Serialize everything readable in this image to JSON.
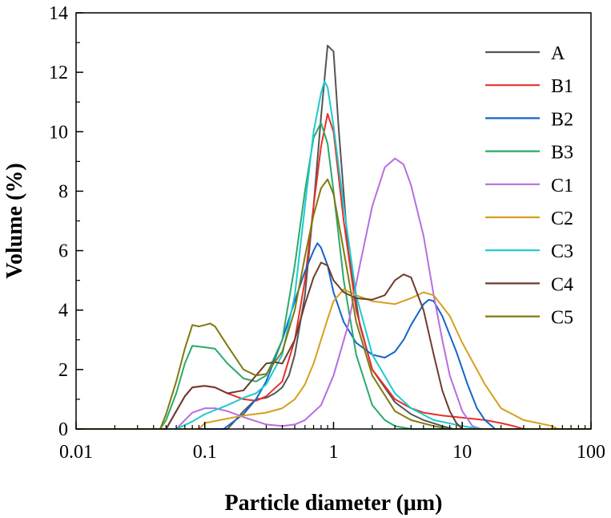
{
  "chart_data": {
    "type": "line",
    "xlabel": "Particle diameter (μm)",
    "ylabel": "Volume (%)",
    "xscale": "log",
    "xlim": [
      0.01,
      100
    ],
    "ylim": [
      0,
      14
    ],
    "x_ticks": [
      "0.01",
      "0.1",
      "1",
      "10",
      "100"
    ],
    "y_ticks": [
      "0",
      "2",
      "4",
      "6",
      "8",
      "10",
      "12",
      "14"
    ],
    "grid": false,
    "legend_position": "top-right",
    "series": [
      {
        "name": "A",
        "color": "#555555",
        "points": [
          [
            0.01,
            0
          ],
          [
            0.15,
            0
          ],
          [
            0.2,
            0.6
          ],
          [
            0.25,
            1.0
          ],
          [
            0.3,
            1.05
          ],
          [
            0.35,
            1.2
          ],
          [
            0.4,
            1.4
          ],
          [
            0.45,
            1.8
          ],
          [
            0.5,
            2.5
          ],
          [
            0.6,
            4.5
          ],
          [
            0.7,
            7.5
          ],
          [
            0.8,
            10.5
          ],
          [
            0.9,
            12.9
          ],
          [
            1.0,
            12.7
          ],
          [
            1.1,
            10.0
          ],
          [
            1.3,
            6.0
          ],
          [
            1.6,
            3.5
          ],
          [
            2.0,
            2.0
          ],
          [
            3.0,
            0.9
          ],
          [
            4.0,
            0.5
          ],
          [
            5.0,
            0.3
          ],
          [
            7.0,
            0.1
          ],
          [
            8.5,
            0
          ],
          [
            100,
            0
          ]
        ]
      },
      {
        "name": "B1",
        "color": "#e8302b",
        "points": [
          [
            0.01,
            0
          ],
          [
            0.05,
            0
          ],
          [
            0.06,
            0.6
          ],
          [
            0.07,
            1.1
          ],
          [
            0.08,
            1.4
          ],
          [
            0.1,
            1.45
          ],
          [
            0.12,
            1.4
          ],
          [
            0.15,
            1.2
          ],
          [
            0.2,
            1.0
          ],
          [
            0.25,
            0.95
          ],
          [
            0.3,
            1.1
          ],
          [
            0.4,
            1.6
          ],
          [
            0.5,
            3.0
          ],
          [
            0.6,
            5.0
          ],
          [
            0.7,
            7.5
          ],
          [
            0.8,
            9.5
          ],
          [
            0.9,
            10.6
          ],
          [
            1.0,
            10.0
          ],
          [
            1.2,
            7.0
          ],
          [
            1.5,
            4.0
          ],
          [
            2.0,
            2.0
          ],
          [
            3.0,
            1.0
          ],
          [
            4.0,
            0.7
          ],
          [
            5.0,
            0.55
          ],
          [
            7.0,
            0.45
          ],
          [
            10,
            0.38
          ],
          [
            15,
            0.3
          ],
          [
            20,
            0.2
          ],
          [
            25,
            0.1
          ],
          [
            30,
            0
          ],
          [
            100,
            0
          ]
        ]
      },
      {
        "name": "B2",
        "color": "#1565c8",
        "points": [
          [
            0.01,
            0
          ],
          [
            0.14,
            0
          ],
          [
            0.2,
            0.5
          ],
          [
            0.25,
            1.0
          ],
          [
            0.3,
            1.6
          ],
          [
            0.4,
            3.0
          ],
          [
            0.5,
            4.3
          ],
          [
            0.6,
            5.3
          ],
          [
            0.7,
            6.0
          ],
          [
            0.75,
            6.25
          ],
          [
            0.8,
            6.1
          ],
          [
            0.9,
            5.5
          ],
          [
            1.0,
            4.6
          ],
          [
            1.2,
            3.6
          ],
          [
            1.5,
            2.9
          ],
          [
            2.0,
            2.5
          ],
          [
            2.5,
            2.4
          ],
          [
            3.0,
            2.6
          ],
          [
            3.5,
            3.0
          ],
          [
            4.0,
            3.5
          ],
          [
            5.0,
            4.2
          ],
          [
            5.5,
            4.35
          ],
          [
            6.0,
            4.3
          ],
          [
            7.0,
            3.8
          ],
          [
            9.0,
            2.6
          ],
          [
            11,
            1.5
          ],
          [
            13,
            0.7
          ],
          [
            15,
            0.3
          ],
          [
            18,
            0
          ],
          [
            100,
            0
          ]
        ]
      },
      {
        "name": "B3",
        "color": "#2aaa6a",
        "points": [
          [
            0.01,
            0
          ],
          [
            0.045,
            0
          ],
          [
            0.05,
            0.3
          ],
          [
            0.06,
            1.2
          ],
          [
            0.07,
            2.2
          ],
          [
            0.08,
            2.8
          ],
          [
            0.1,
            2.75
          ],
          [
            0.12,
            2.7
          ],
          [
            0.15,
            2.2
          ],
          [
            0.2,
            1.7
          ],
          [
            0.25,
            1.6
          ],
          [
            0.3,
            1.8
          ],
          [
            0.4,
            3.0
          ],
          [
            0.5,
            5.5
          ],
          [
            0.6,
            8.0
          ],
          [
            0.7,
            9.8
          ],
          [
            0.8,
            10.3
          ],
          [
            0.9,
            9.6
          ],
          [
            1.0,
            8.0
          ],
          [
            1.2,
            5.0
          ],
          [
            1.5,
            2.5
          ],
          [
            2.0,
            0.8
          ],
          [
            2.5,
            0.3
          ],
          [
            3.0,
            0.1
          ],
          [
            4.0,
            0
          ],
          [
            100,
            0
          ]
        ]
      },
      {
        "name": "C1",
        "color": "#b86ee0",
        "points": [
          [
            0.01,
            0
          ],
          [
            0.06,
            0
          ],
          [
            0.07,
            0.3
          ],
          [
            0.08,
            0.55
          ],
          [
            0.1,
            0.7
          ],
          [
            0.12,
            0.7
          ],
          [
            0.15,
            0.6
          ],
          [
            0.2,
            0.4
          ],
          [
            0.3,
            0.15
          ],
          [
            0.4,
            0.1
          ],
          [
            0.5,
            0.15
          ],
          [
            0.6,
            0.3
          ],
          [
            0.8,
            0.8
          ],
          [
            1.0,
            1.8
          ],
          [
            1.3,
            3.5
          ],
          [
            1.6,
            5.5
          ],
          [
            2.0,
            7.5
          ],
          [
            2.5,
            8.8
          ],
          [
            3.0,
            9.1
          ],
          [
            3.5,
            8.9
          ],
          [
            4.0,
            8.2
          ],
          [
            5.0,
            6.5
          ],
          [
            6.0,
            4.5
          ],
          [
            7.0,
            3.0
          ],
          [
            8.0,
            1.8
          ],
          [
            10,
            0.6
          ],
          [
            12,
            0.1
          ],
          [
            14,
            0
          ],
          [
            100,
            0
          ]
        ]
      },
      {
        "name": "C2",
        "color": "#d6a01c",
        "points": [
          [
            0.01,
            0
          ],
          [
            0.09,
            0
          ],
          [
            0.1,
            0.2
          ],
          [
            0.15,
            0.35
          ],
          [
            0.2,
            0.45
          ],
          [
            0.3,
            0.55
          ],
          [
            0.4,
            0.7
          ],
          [
            0.5,
            1.0
          ],
          [
            0.6,
            1.5
          ],
          [
            0.7,
            2.2
          ],
          [
            0.8,
            3.0
          ],
          [
            0.9,
            3.7
          ],
          [
            1.0,
            4.3
          ],
          [
            1.2,
            4.7
          ],
          [
            1.5,
            4.5
          ],
          [
            2.0,
            4.3
          ],
          [
            3.0,
            4.2
          ],
          [
            4.0,
            4.4
          ],
          [
            5.0,
            4.6
          ],
          [
            6.0,
            4.5
          ],
          [
            8.0,
            3.8
          ],
          [
            10,
            2.9
          ],
          [
            15,
            1.5
          ],
          [
            20,
            0.7
          ],
          [
            30,
            0.3
          ],
          [
            50,
            0.1
          ],
          [
            55,
            0
          ],
          [
            100,
            0
          ]
        ]
      },
      {
        "name": "C3",
        "color": "#1ccad0",
        "points": [
          [
            0.01,
            0
          ],
          [
            0.06,
            0
          ],
          [
            0.08,
            0.25
          ],
          [
            0.1,
            0.5
          ],
          [
            0.15,
            0.8
          ],
          [
            0.2,
            1.05
          ],
          [
            0.25,
            1.2
          ],
          [
            0.3,
            1.5
          ],
          [
            0.4,
            2.5
          ],
          [
            0.5,
            4.5
          ],
          [
            0.6,
            7.5
          ],
          [
            0.7,
            10.0
          ],
          [
            0.8,
            11.3
          ],
          [
            0.85,
            11.7
          ],
          [
            0.9,
            11.5
          ],
          [
            1.0,
            10.2
          ],
          [
            1.2,
            7.5
          ],
          [
            1.5,
            4.5
          ],
          [
            2.0,
            2.5
          ],
          [
            3.0,
            1.2
          ],
          [
            4.0,
            0.7
          ],
          [
            6.0,
            0.3
          ],
          [
            10,
            0.1
          ],
          [
            14,
            0
          ],
          [
            100,
            0
          ]
        ]
      },
      {
        "name": "C4",
        "color": "#6e3b2e",
        "points": [
          [
            0.01,
            0
          ],
          [
            0.05,
            0
          ],
          [
            0.06,
            0.6
          ],
          [
            0.07,
            1.1
          ],
          [
            0.08,
            1.4
          ],
          [
            0.1,
            1.45
          ],
          [
            0.12,
            1.4
          ],
          [
            0.15,
            1.2
          ],
          [
            0.2,
            1.3
          ],
          [
            0.25,
            1.8
          ],
          [
            0.3,
            2.2
          ],
          [
            0.35,
            2.25
          ],
          [
            0.4,
            2.2
          ],
          [
            0.5,
            3.0
          ],
          [
            0.6,
            4.2
          ],
          [
            0.7,
            5.1
          ],
          [
            0.8,
            5.6
          ],
          [
            0.9,
            5.5
          ],
          [
            1.0,
            5.0
          ],
          [
            1.2,
            4.6
          ],
          [
            1.5,
            4.4
          ],
          [
            2.0,
            4.35
          ],
          [
            2.5,
            4.5
          ],
          [
            3.0,
            5.0
          ],
          [
            3.5,
            5.2
          ],
          [
            4.0,
            5.1
          ],
          [
            5.0,
            4.0
          ],
          [
            6.0,
            2.5
          ],
          [
            7.0,
            1.3
          ],
          [
            8.0,
            0.6
          ],
          [
            9.0,
            0.2
          ],
          [
            10,
            0
          ],
          [
            100,
            0
          ]
        ]
      },
      {
        "name": "C5",
        "color": "#7f7a10",
        "points": [
          [
            0.01,
            0
          ],
          [
            0.045,
            0
          ],
          [
            0.05,
            0.5
          ],
          [
            0.06,
            1.6
          ],
          [
            0.07,
            2.7
          ],
          [
            0.08,
            3.5
          ],
          [
            0.09,
            3.45
          ],
          [
            0.1,
            3.5
          ],
          [
            0.11,
            3.55
          ],
          [
            0.12,
            3.45
          ],
          [
            0.15,
            2.8
          ],
          [
            0.2,
            2.0
          ],
          [
            0.25,
            1.8
          ],
          [
            0.3,
            1.85
          ],
          [
            0.4,
            2.6
          ],
          [
            0.5,
            4.0
          ],
          [
            0.6,
            5.8
          ],
          [
            0.7,
            7.2
          ],
          [
            0.8,
            8.1
          ],
          [
            0.9,
            8.4
          ],
          [
            1.0,
            7.9
          ],
          [
            1.2,
            6.0
          ],
          [
            1.5,
            3.6
          ],
          [
            2.0,
            1.8
          ],
          [
            3.0,
            0.6
          ],
          [
            4.0,
            0.3
          ],
          [
            6.0,
            0.1
          ],
          [
            8.0,
            0
          ],
          [
            100,
            0
          ]
        ]
      }
    ]
  }
}
